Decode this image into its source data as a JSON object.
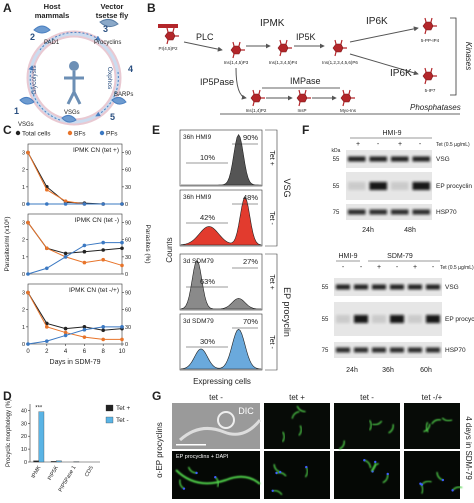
{
  "a": {
    "label": "A",
    "host": [
      "Host",
      "mammals"
    ],
    "vector": [
      "Vector",
      "tsetse fly"
    ],
    "steps": [
      "1",
      "2",
      "3",
      "4",
      "5"
    ],
    "pad1": "PAD1",
    "procyclins": "Procyclins",
    "glycolysis": "Glycolysis",
    "oxphos": "Oxphos",
    "vsgs_left": "VSGs",
    "vsgs_bottom": "VSGs",
    "barps": "BARPs"
  },
  "b": {
    "label": "B",
    "substrate": "PI(4,5)P2",
    "plc": "PLC",
    "ipmk": "IPMK",
    "ip6k_top": "IP6K",
    "ip3": "Ins(1,4,5)P3",
    "ip4": "Ins(1,3,4,5)P4",
    "ip5k": "IP5K",
    "ip6": "Ins(1,2,3,4,5,6)P6",
    "pp_ip4": "5-PP-IP4",
    "ip7": "5-IP7",
    "kinases": "Kinases",
    "ip5pase": "IP5Pase",
    "impase": "IMPase",
    "ip6k_mid": "IP6K",
    "ip2": "Ins(1,4)P2",
    "insp": "InsP",
    "myoins": "Myo-Ins",
    "phosphatases": "Phosphatases"
  },
  "c": {
    "label": "C"
  },
  "d": {
    "label": "D"
  },
  "chart_data": [
    {
      "type": "line",
      "title": "IPMK CN (tet +)",
      "x": [
        0,
        2,
        4,
        6,
        8,
        10
      ],
      "xlim": [
        0,
        10
      ],
      "ylim": [
        0,
        3.5
      ],
      "yticks": [
        0,
        1,
        2,
        3
      ],
      "y2lim": [
        0,
        105
      ],
      "y2ticks": [
        0,
        30,
        60,
        90
      ],
      "series": [
        {
          "name": "Total cells",
          "color": "#222222",
          "values": [
            3,
            1.0,
            0.1,
            0.05,
            0,
            0
          ]
        },
        {
          "name": "BFs",
          "color": "#e8742a",
          "axis": "y2",
          "values": [
            90,
            25,
            5,
            0,
            0,
            0
          ]
        },
        {
          "name": "PFs",
          "color": "#3a78c2",
          "axis": "y2",
          "values": [
            0,
            0,
            0,
            0,
            0,
            0
          ]
        }
      ]
    },
    {
      "type": "line",
      "title": "IPMK CN (tet -)",
      "y_label": "Parasites/ml (x10⁶)",
      "y2_label": "Parasites (%)",
      "x": [
        0,
        2,
        4,
        6,
        8,
        10
      ],
      "xlim": [
        0,
        10
      ],
      "ylim": [
        0,
        3.5
      ],
      "yticks": [
        0,
        1,
        2,
        3
      ],
      "y2lim": [
        0,
        105
      ],
      "y2ticks": [
        0,
        30,
        60,
        90
      ],
      "series": [
        {
          "color": "#222222",
          "values": [
            3,
            1.5,
            1.2,
            1.3,
            1.4,
            1.5
          ]
        },
        {
          "color": "#e8742a",
          "axis": "y2",
          "values": [
            90,
            45,
            30,
            20,
            25,
            15
          ]
        },
        {
          "color": "#3a78c2",
          "axis": "y2",
          "values": [
            0,
            10,
            30,
            50,
            55,
            55
          ]
        }
      ]
    },
    {
      "type": "line",
      "title": "IPMK CN (tet -/+)",
      "x_label": "Days in SDM-79",
      "x": [
        0,
        2,
        4,
        6,
        8,
        10
      ],
      "xlim": [
        0,
        10
      ],
      "xticks": [
        0,
        2,
        4,
        6,
        8,
        10
      ],
      "ylim": [
        0,
        3.5
      ],
      "yticks": [
        0,
        1,
        2,
        3
      ],
      "y2lim": [
        0,
        105
      ],
      "y2ticks": [
        0,
        30,
        60,
        90
      ],
      "series": [
        {
          "color": "#222222",
          "values": [
            3,
            1.2,
            0.9,
            1.0,
            0.8,
            0.9
          ]
        },
        {
          "color": "#e8742a",
          "axis": "y2",
          "values": [
            90,
            30,
            20,
            12,
            8,
            8
          ]
        },
        {
          "color": "#3a78c2",
          "axis": "y2",
          "values": [
            0,
            5,
            15,
            25,
            30,
            30
          ]
        }
      ]
    },
    {
      "type": "bar",
      "y_label": "Procyclic morphology (%)",
      "annotation": "***",
      "categories": [
        "IPMK",
        "PIP5K",
        "PIP5Pase 1",
        "CDS"
      ],
      "ylim": [
        0,
        45
      ],
      "yticks": [
        0,
        10,
        20,
        30,
        40
      ],
      "series": [
        {
          "name": "Tet +",
          "color": "#222222",
          "values": [
            1,
            0.5,
            0,
            0
          ]
        },
        {
          "name": "Tet -",
          "color": "#5ab4e5",
          "values": [
            39,
            1,
            0.3,
            0
          ]
        }
      ]
    }
  ],
  "e": {
    "label": "E",
    "condition_1": "36h HMI9",
    "condition_2": "36h HMI9",
    "condition_3": "3d SDM79",
    "condition_4": "3d SDM79",
    "gates": [
      [
        "10%",
        "90%"
      ],
      [
        "42%",
        "48%"
      ],
      [
        "63%",
        "27%"
      ],
      [
        "30%",
        "70%"
      ]
    ],
    "tet": [
      "Tet +",
      "Tet -",
      "Tet +",
      "Tet -"
    ],
    "marker_1": "VSG",
    "marker_2": "EP procyclin",
    "y_label": "Counts",
    "x_label": "Expressing cells"
  },
  "f": {
    "label": "F",
    "blot_1": {
      "medium": "HMI-9",
      "tet_label": "Tet (0.5 µg/mL)",
      "signs": [
        "+",
        "-",
        "+",
        "-"
      ],
      "kda": "kDa",
      "markers": [
        "55",
        "55",
        "75"
      ],
      "rows": [
        "VSG",
        "EP procyclin",
        "HSP70"
      ],
      "times": [
        "24h",
        "48h"
      ]
    },
    "blot_2": {
      "media": [
        "HMI-9",
        "SDM-79"
      ],
      "tet_label": "Tet (0.5 µg/mL)",
      "signs": [
        "-",
        "-",
        "+",
        "-",
        "+",
        "-"
      ],
      "markers": [
        "55",
        "55",
        "75"
      ],
      "rows": [
        "VSG",
        "EP procyclin",
        "HSP70"
      ],
      "times": [
        "24h",
        "36h",
        "60h"
      ]
    }
  },
  "g": {
    "label": "G",
    "columns": [
      "tet -",
      "tet +",
      "tet -",
      "tet -/+"
    ],
    "dic": "DIC",
    "overlay": "EP procyclins + DAPI",
    "row_label": "α-EP procyclins",
    "side_label": "4 days in SDM-79"
  }
}
